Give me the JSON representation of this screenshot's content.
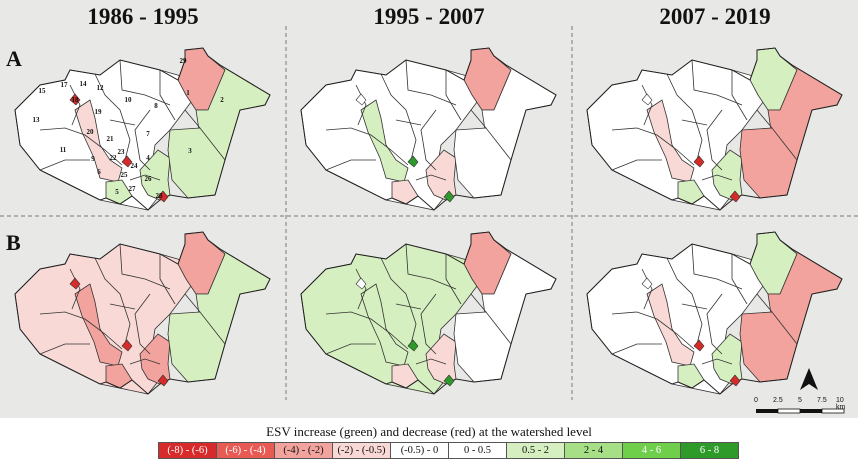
{
  "titles": {
    "period_1": "1986 - 1995",
    "period_2": "1995 - 2007",
    "period_3": "2007 - 2019"
  },
  "rows": {
    "row_a": "A",
    "row_b": "B"
  },
  "watershed_numbers": [
    "29",
    "1",
    "2",
    "15",
    "17",
    "14",
    "12",
    "18",
    "10",
    "8",
    "13",
    "19",
    "20",
    "21",
    "7",
    "11",
    "9",
    "22",
    "23",
    "4",
    "24",
    "3",
    "25",
    "6",
    "26",
    "5",
    "27",
    "28"
  ],
  "legend": {
    "title": "ESV increase (green) and decrease (red) at the watershed level",
    "classes": [
      {
        "label": "(-8) - (-6)",
        "color": "#d72a2a",
        "text_color": "#ffffff"
      },
      {
        "label": "(-6) - (-4)",
        "color": "#e85b55",
        "text_color": "#ffffff"
      },
      {
        "label": "(-4) - (-2)",
        "color": "#f3a39d",
        "text_color": "#111111"
      },
      {
        "label": "(-2) - (-0.5)",
        "color": "#f9d9d6",
        "text_color": "#111111"
      },
      {
        "label": "(-0.5) - 0",
        "color": "#ffffff",
        "text_color": "#111111"
      },
      {
        "label": "0 - 0.5",
        "color": "#ffffff",
        "text_color": "#111111"
      },
      {
        "label": "0.5 - 2",
        "color": "#d6efc0",
        "text_color": "#111111"
      },
      {
        "label": "2 - 4",
        "color": "#a6df86",
        "text_color": "#111111"
      },
      {
        "label": "4 - 6",
        "color": "#6fcf4b",
        "text_color": "#ffffff"
      },
      {
        "label": "6 - 8",
        "color": "#2e9a2a",
        "text_color": "#ffffff"
      }
    ]
  },
  "scale_bar": {
    "ticks": [
      "0",
      "2.5",
      "5",
      "7.5",
      "10 km"
    ]
  },
  "panels": [
    {
      "name": "A-1986-1995",
      "ne": "#f3a39d",
      "east": "#d6efc0",
      "west": "#ffffff",
      "center": "#f9d9d6",
      "south": "#d6efc0",
      "hotspot": "#d72a2a"
    },
    {
      "name": "A-1995-2007",
      "ne": "#f3a39d",
      "east": "#ffffff",
      "west": "#ffffff",
      "center": "#d6efc0",
      "south": "#f9d9d6",
      "hotspot": "#2e9a2a"
    },
    {
      "name": "A-2007-2019",
      "ne": "#d6efc0",
      "east": "#f3a39d",
      "west": "#ffffff",
      "center": "#f9d9d6",
      "south": "#d6efc0",
      "hotspot": "#d72a2a"
    },
    {
      "name": "B-1986-1995",
      "ne": "#f3a39d",
      "east": "#d6efc0",
      "west": "#f9d9d6",
      "center": "#f3a39d",
      "south": "#f3a39d",
      "hotspot": "#d72a2a"
    },
    {
      "name": "B-1995-2007",
      "ne": "#f3a39d",
      "east": "#ffffff",
      "west": "#d6efc0",
      "center": "#d6efc0",
      "south": "#f9d9d6",
      "hotspot": "#2e9a2a"
    },
    {
      "name": "B-2007-2019",
      "ne": "#d6efc0",
      "east": "#f3a39d",
      "west": "#ffffff",
      "center": "#f9d9d6",
      "south": "#d6efc0",
      "hotspot": "#d72a2a"
    }
  ]
}
